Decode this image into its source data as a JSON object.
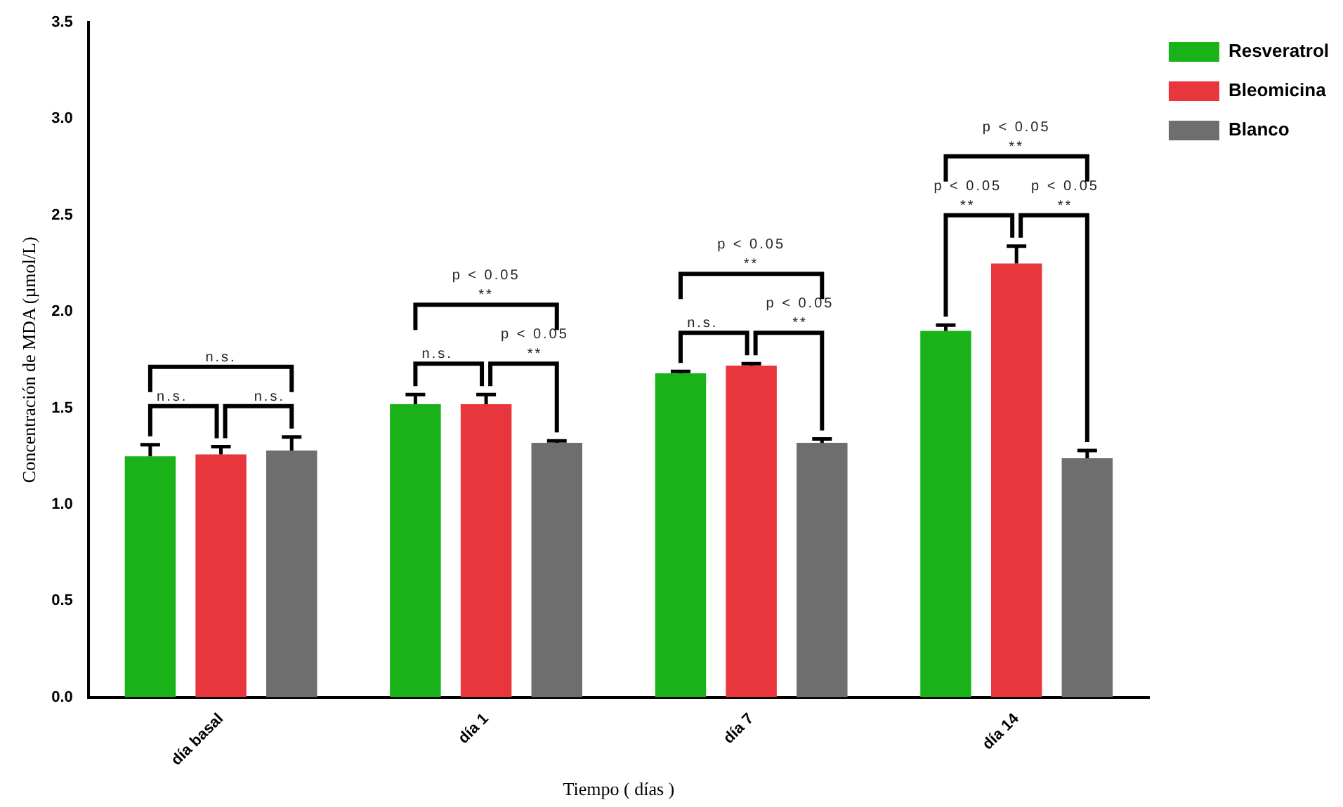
{
  "chart_data": {
    "type": "bar",
    "xlabel": "Tiempo ( días )",
    "ylabel": "Concentración de MDA (µmol/L)",
    "categories": [
      "día basal",
      "día 1",
      "día 7",
      "día 14"
    ],
    "series": [
      {
        "name": "Resveratrol",
        "color": "#19b219",
        "values": [
          1.25,
          1.52,
          1.68,
          1.9
        ],
        "errors": [
          [
            1.25,
            1.31
          ],
          [
            1.52,
            1.57
          ],
          [
            1.68,
            1.69
          ],
          [
            1.9,
            1.93
          ]
        ]
      },
      {
        "name": "Bleomicina",
        "color": "#e8363c",
        "values": [
          1.26,
          1.52,
          1.72,
          2.25
        ],
        "errors": [
          [
            1.26,
            1.3
          ],
          [
            1.52,
            1.57
          ],
          [
            1.72,
            1.73
          ],
          [
            2.25,
            2.34
          ]
        ]
      },
      {
        "name": "Blanco",
        "color": "#6e6e6e",
        "values": [
          1.28,
          1.32,
          1.32,
          1.24
        ],
        "errors": [
          [
            1.28,
            1.35
          ],
          [
            1.32,
            1.33
          ],
          [
            1.32,
            1.34
          ],
          [
            1.24,
            1.28
          ]
        ]
      }
    ],
    "ylim": [
      0,
      3.5
    ],
    "yticks": [
      {
        "value": 0,
        "label": "0.0"
      },
      0.5,
      {
        "value": 1,
        "label": "1.0"
      },
      1.5,
      {
        "value": 2,
        "label": "2.0"
      },
      2.5,
      {
        "value": 3,
        "label": "3.0"
      },
      3.5
    ],
    "grid": false,
    "legend": "right",
    "annotations": [
      "n.s.",
      "n.s.",
      "n.s.",
      "n.s.",
      "p < 0.05\n**",
      "p < 0.05\n**",
      "n.s.",
      "p < 0.05\n**",
      "p < 0.05\n**",
      "p < 0.05\n**",
      "p < 0.05\n**",
      "p < 0.05\n**"
    ]
  }
}
